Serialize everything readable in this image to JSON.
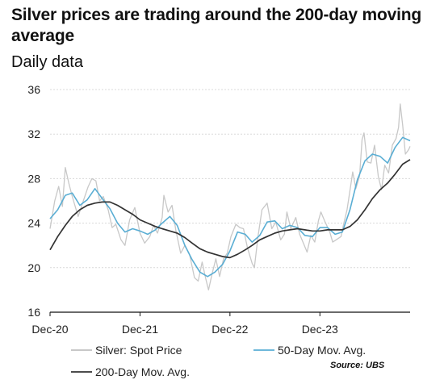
{
  "chart_data": {
    "type": "line",
    "title": "Silver prices are trading around the 200-day moving average",
    "subtitle": "Daily data",
    "xlabel": "",
    "ylabel": "",
    "ylim": [
      16,
      36
    ],
    "yticks": [
      16,
      20,
      24,
      28,
      32,
      36
    ],
    "x_range": [
      "2020-12-01",
      "2024-12-01"
    ],
    "x_ticks": [
      {
        "date": "2020-12-01",
        "label": "Dec-20"
      },
      {
        "date": "2021-12-01",
        "label": "Dec-21"
      },
      {
        "date": "2022-12-01",
        "label": "Dec-22"
      },
      {
        "date": "2023-12-01",
        "label": "Dec-23"
      }
    ],
    "grid": "horizontal",
    "legend_placement": "bottom",
    "source": "Source: UBS",
    "series": [
      {
        "name": "Silver: Spot Price",
        "color": "#c8c8c8",
        "points": [
          [
            "2020-12-01",
            23.5
          ],
          [
            "2020-12-20",
            26.0
          ],
          [
            "2021-01-05",
            27.3
          ],
          [
            "2021-01-20",
            25.5
          ],
          [
            "2021-02-01",
            29.0
          ],
          [
            "2021-02-15",
            27.6
          ],
          [
            "2021-03-01",
            26.4
          ],
          [
            "2021-03-25",
            24.6
          ],
          [
            "2021-04-15",
            26.0
          ],
          [
            "2021-05-05",
            27.3
          ],
          [
            "2021-05-20",
            28.0
          ],
          [
            "2021-06-05",
            27.8
          ],
          [
            "2021-06-20",
            26.0
          ],
          [
            "2021-07-05",
            26.4
          ],
          [
            "2021-07-25",
            25.2
          ],
          [
            "2021-08-10",
            23.6
          ],
          [
            "2021-08-25",
            23.9
          ],
          [
            "2021-09-15",
            22.5
          ],
          [
            "2021-10-01",
            22.0
          ],
          [
            "2021-10-20",
            24.3
          ],
          [
            "2021-11-10",
            25.4
          ],
          [
            "2021-12-01",
            23.1
          ],
          [
            "2021-12-20",
            22.2
          ],
          [
            "2022-01-10",
            22.8
          ],
          [
            "2022-01-25",
            23.8
          ],
          [
            "2022-02-10",
            23.1
          ],
          [
            "2022-03-01",
            24.5
          ],
          [
            "2022-03-08",
            26.5
          ],
          [
            "2022-03-25",
            25.0
          ],
          [
            "2022-04-10",
            25.6
          ],
          [
            "2022-04-25",
            23.4
          ],
          [
            "2022-05-15",
            21.3
          ],
          [
            "2022-06-01",
            22.0
          ],
          [
            "2022-06-20",
            21.2
          ],
          [
            "2022-07-10",
            19.1
          ],
          [
            "2022-07-25",
            18.8
          ],
          [
            "2022-08-10",
            20.5
          ],
          [
            "2022-08-25",
            19.0
          ],
          [
            "2022-09-05",
            18.0
          ],
          [
            "2022-09-20",
            19.5
          ],
          [
            "2022-10-05",
            20.8
          ],
          [
            "2022-10-20",
            19.2
          ],
          [
            "2022-11-05",
            20.8
          ],
          [
            "2022-11-20",
            21.3
          ],
          [
            "2022-12-05",
            22.8
          ],
          [
            "2022-12-25",
            23.9
          ],
          [
            "2023-01-10",
            23.6
          ],
          [
            "2023-01-25",
            23.5
          ],
          [
            "2023-02-10",
            21.8
          ],
          [
            "2023-03-01",
            20.4
          ],
          [
            "2023-03-10",
            20.0
          ],
          [
            "2023-03-25",
            22.8
          ],
          [
            "2023-04-10",
            25.2
          ],
          [
            "2023-05-01",
            25.8
          ],
          [
            "2023-05-20",
            23.5
          ],
          [
            "2023-06-05",
            24.1
          ],
          [
            "2023-06-25",
            22.5
          ],
          [
            "2023-07-10",
            23.0
          ],
          [
            "2023-07-20",
            25.0
          ],
          [
            "2023-08-05",
            23.5
          ],
          [
            "2023-08-25",
            24.5
          ],
          [
            "2023-09-10",
            23.0
          ],
          [
            "2023-09-25",
            22.2
          ],
          [
            "2023-10-10",
            21.4
          ],
          [
            "2023-10-25",
            22.9
          ],
          [
            "2023-11-10",
            22.3
          ],
          [
            "2023-11-25",
            24.2
          ],
          [
            "2023-12-05",
            25.0
          ],
          [
            "2023-12-20",
            24.2
          ],
          [
            "2024-01-10",
            23.2
          ],
          [
            "2024-01-22",
            22.3
          ],
          [
            "2024-02-05",
            22.5
          ],
          [
            "2024-02-25",
            22.8
          ],
          [
            "2024-03-05",
            23.8
          ],
          [
            "2024-03-20",
            25.2
          ],
          [
            "2024-04-05",
            27.5
          ],
          [
            "2024-04-12",
            28.6
          ],
          [
            "2024-04-25",
            27.1
          ],
          [
            "2024-05-10",
            28.2
          ],
          [
            "2024-05-20",
            31.5
          ],
          [
            "2024-05-28",
            32.1
          ],
          [
            "2024-06-10",
            29.5
          ],
          [
            "2024-06-25",
            29.4
          ],
          [
            "2024-07-10",
            31.0
          ],
          [
            "2024-07-25",
            28.2
          ],
          [
            "2024-08-07",
            27.0
          ],
          [
            "2024-08-20",
            29.2
          ],
          [
            "2024-09-05",
            28.5
          ],
          [
            "2024-09-20",
            31.0
          ],
          [
            "2024-10-05",
            31.6
          ],
          [
            "2024-10-15",
            32.6
          ],
          [
            "2024-10-22",
            34.7
          ],
          [
            "2024-11-01",
            32.8
          ],
          [
            "2024-11-12",
            30.2
          ],
          [
            "2024-11-25",
            30.6
          ],
          [
            "2024-12-01",
            30.9
          ]
        ]
      },
      {
        "name": "50-Day Mov. Avg.",
        "color": "#5aaed4",
        "points": [
          [
            "2020-12-01",
            24.4
          ],
          [
            "2021-01-01",
            25.2
          ],
          [
            "2021-02-01",
            26.5
          ],
          [
            "2021-03-01",
            26.7
          ],
          [
            "2021-04-01",
            25.6
          ],
          [
            "2021-05-01",
            26.1
          ],
          [
            "2021-06-01",
            27.1
          ],
          [
            "2021-07-01",
            26.2
          ],
          [
            "2021-08-01",
            25.3
          ],
          [
            "2021-09-01",
            24.0
          ],
          [
            "2021-10-01",
            23.2
          ],
          [
            "2021-11-01",
            23.5
          ],
          [
            "2021-12-01",
            23.3
          ],
          [
            "2022-01-01",
            23.0
          ],
          [
            "2022-02-01",
            23.4
          ],
          [
            "2022-03-01",
            24.0
          ],
          [
            "2022-04-01",
            24.6
          ],
          [
            "2022-05-01",
            23.8
          ],
          [
            "2022-06-01",
            22.0
          ],
          [
            "2022-07-01",
            20.7
          ],
          [
            "2022-08-01",
            19.6
          ],
          [
            "2022-09-01",
            19.2
          ],
          [
            "2022-10-01",
            19.6
          ],
          [
            "2022-11-01",
            20.3
          ],
          [
            "2022-12-01",
            21.5
          ],
          [
            "2023-01-01",
            23.2
          ],
          [
            "2023-02-01",
            23.0
          ],
          [
            "2023-03-01",
            22.3
          ],
          [
            "2023-04-01",
            22.9
          ],
          [
            "2023-05-01",
            24.1
          ],
          [
            "2023-06-01",
            24.2
          ],
          [
            "2023-07-01",
            23.5
          ],
          [
            "2023-08-01",
            23.8
          ],
          [
            "2023-09-01",
            23.6
          ],
          [
            "2023-10-01",
            22.9
          ],
          [
            "2023-11-01",
            22.8
          ],
          [
            "2023-12-01",
            23.6
          ],
          [
            "2024-01-01",
            23.6
          ],
          [
            "2024-02-01",
            23.0
          ],
          [
            "2024-03-01",
            23.2
          ],
          [
            "2024-04-01",
            25.2
          ],
          [
            "2024-05-01",
            27.9
          ],
          [
            "2024-06-01",
            29.6
          ],
          [
            "2024-07-01",
            30.2
          ],
          [
            "2024-08-01",
            30.0
          ],
          [
            "2024-09-01",
            29.4
          ],
          [
            "2024-10-01",
            30.8
          ],
          [
            "2024-11-01",
            31.7
          ],
          [
            "2024-12-01",
            31.4
          ]
        ]
      },
      {
        "name": "200-Day Mov. Avg.",
        "color": "#333333",
        "points": [
          [
            "2020-12-01",
            21.6
          ],
          [
            "2021-01-01",
            22.8
          ],
          [
            "2021-02-01",
            23.8
          ],
          [
            "2021-03-01",
            24.6
          ],
          [
            "2021-04-01",
            25.2
          ],
          [
            "2021-05-01",
            25.6
          ],
          [
            "2021-06-01",
            25.8
          ],
          [
            "2021-07-01",
            25.9
          ],
          [
            "2021-08-01",
            25.9
          ],
          [
            "2021-09-01",
            25.6
          ],
          [
            "2021-10-01",
            25.2
          ],
          [
            "2021-11-01",
            24.8
          ],
          [
            "2021-12-01",
            24.3
          ],
          [
            "2022-01-01",
            24.0
          ],
          [
            "2022-02-01",
            23.7
          ],
          [
            "2022-03-01",
            23.5
          ],
          [
            "2022-04-01",
            23.3
          ],
          [
            "2022-05-01",
            23.1
          ],
          [
            "2022-06-01",
            22.7
          ],
          [
            "2022-07-01",
            22.2
          ],
          [
            "2022-08-01",
            21.7
          ],
          [
            "2022-09-01",
            21.4
          ],
          [
            "2022-10-01",
            21.2
          ],
          [
            "2022-11-01",
            21.0
          ],
          [
            "2022-12-01",
            20.9
          ],
          [
            "2023-01-01",
            21.2
          ],
          [
            "2023-02-01",
            21.6
          ],
          [
            "2023-03-01",
            22.0
          ],
          [
            "2023-04-01",
            22.5
          ],
          [
            "2023-05-01",
            22.8
          ],
          [
            "2023-06-01",
            23.1
          ],
          [
            "2023-07-01",
            23.3
          ],
          [
            "2023-08-01",
            23.4
          ],
          [
            "2023-09-01",
            23.5
          ],
          [
            "2023-10-01",
            23.4
          ],
          [
            "2023-11-01",
            23.3
          ],
          [
            "2023-12-01",
            23.3
          ],
          [
            "2024-01-01",
            23.4
          ],
          [
            "2024-02-01",
            23.4
          ],
          [
            "2024-03-01",
            23.4
          ],
          [
            "2024-04-01",
            23.7
          ],
          [
            "2024-05-01",
            24.3
          ],
          [
            "2024-06-01",
            25.2
          ],
          [
            "2024-07-01",
            26.2
          ],
          [
            "2024-08-01",
            27.0
          ],
          [
            "2024-09-01",
            27.6
          ],
          [
            "2024-10-01",
            28.4
          ],
          [
            "2024-11-01",
            29.3
          ],
          [
            "2024-12-01",
            29.7
          ]
        ]
      }
    ]
  }
}
